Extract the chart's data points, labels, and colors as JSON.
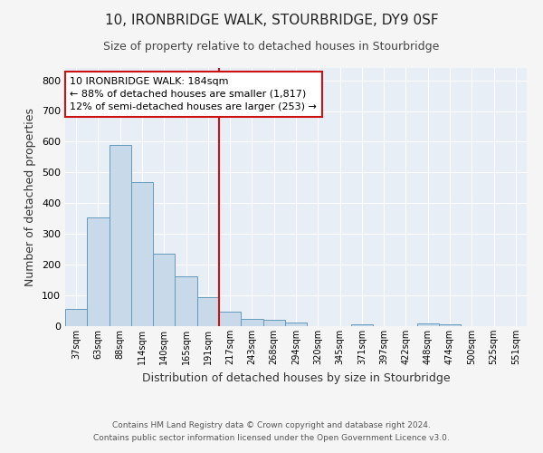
{
  "title": "10, IRONBRIDGE WALK, STOURBRIDGE, DY9 0SF",
  "subtitle": "Size of property relative to detached houses in Stourbridge",
  "xlabel": "Distribution of detached houses by size in Stourbridge",
  "ylabel": "Number of detached properties",
  "footer_line1": "Contains HM Land Registry data © Crown copyright and database right 2024.",
  "footer_line2": "Contains public sector information licensed under the Open Government Licence v3.0.",
  "categories": [
    "37sqm",
    "63sqm",
    "88sqm",
    "114sqm",
    "140sqm",
    "165sqm",
    "191sqm",
    "217sqm",
    "243sqm",
    "268sqm",
    "294sqm",
    "320sqm",
    "345sqm",
    "371sqm",
    "397sqm",
    "422sqm",
    "448sqm",
    "474sqm",
    "500sqm",
    "525sqm",
    "551sqm"
  ],
  "values": [
    57,
    355,
    590,
    470,
    235,
    162,
    95,
    47,
    25,
    20,
    13,
    0,
    0,
    7,
    0,
    0,
    10,
    7,
    0,
    0,
    0
  ],
  "bar_color": "#c8daea",
  "bar_edge_color": "#6699bb",
  "vline_x": 6.5,
  "vline_color": "#cc1111",
  "annotation_text": "10 IRONBRIDGE WALK: 184sqm\n← 88% of detached houses are smaller (1,817)\n12% of semi-detached houses are larger (253) →",
  "annotation_box_color": "#ffffff",
  "annotation_box_edge": "#cc1111",
  "ylim": [
    0,
    840
  ],
  "yticks": [
    0,
    100,
    200,
    300,
    400,
    500,
    600,
    700,
    800
  ],
  "background_color": "#e8eef6",
  "grid_color": "#ffffff",
  "title_fontsize": 11,
  "subtitle_fontsize": 9,
  "xlabel_fontsize": 9,
  "ylabel_fontsize": 9,
  "fig_bg_color": "#f5f5f5"
}
